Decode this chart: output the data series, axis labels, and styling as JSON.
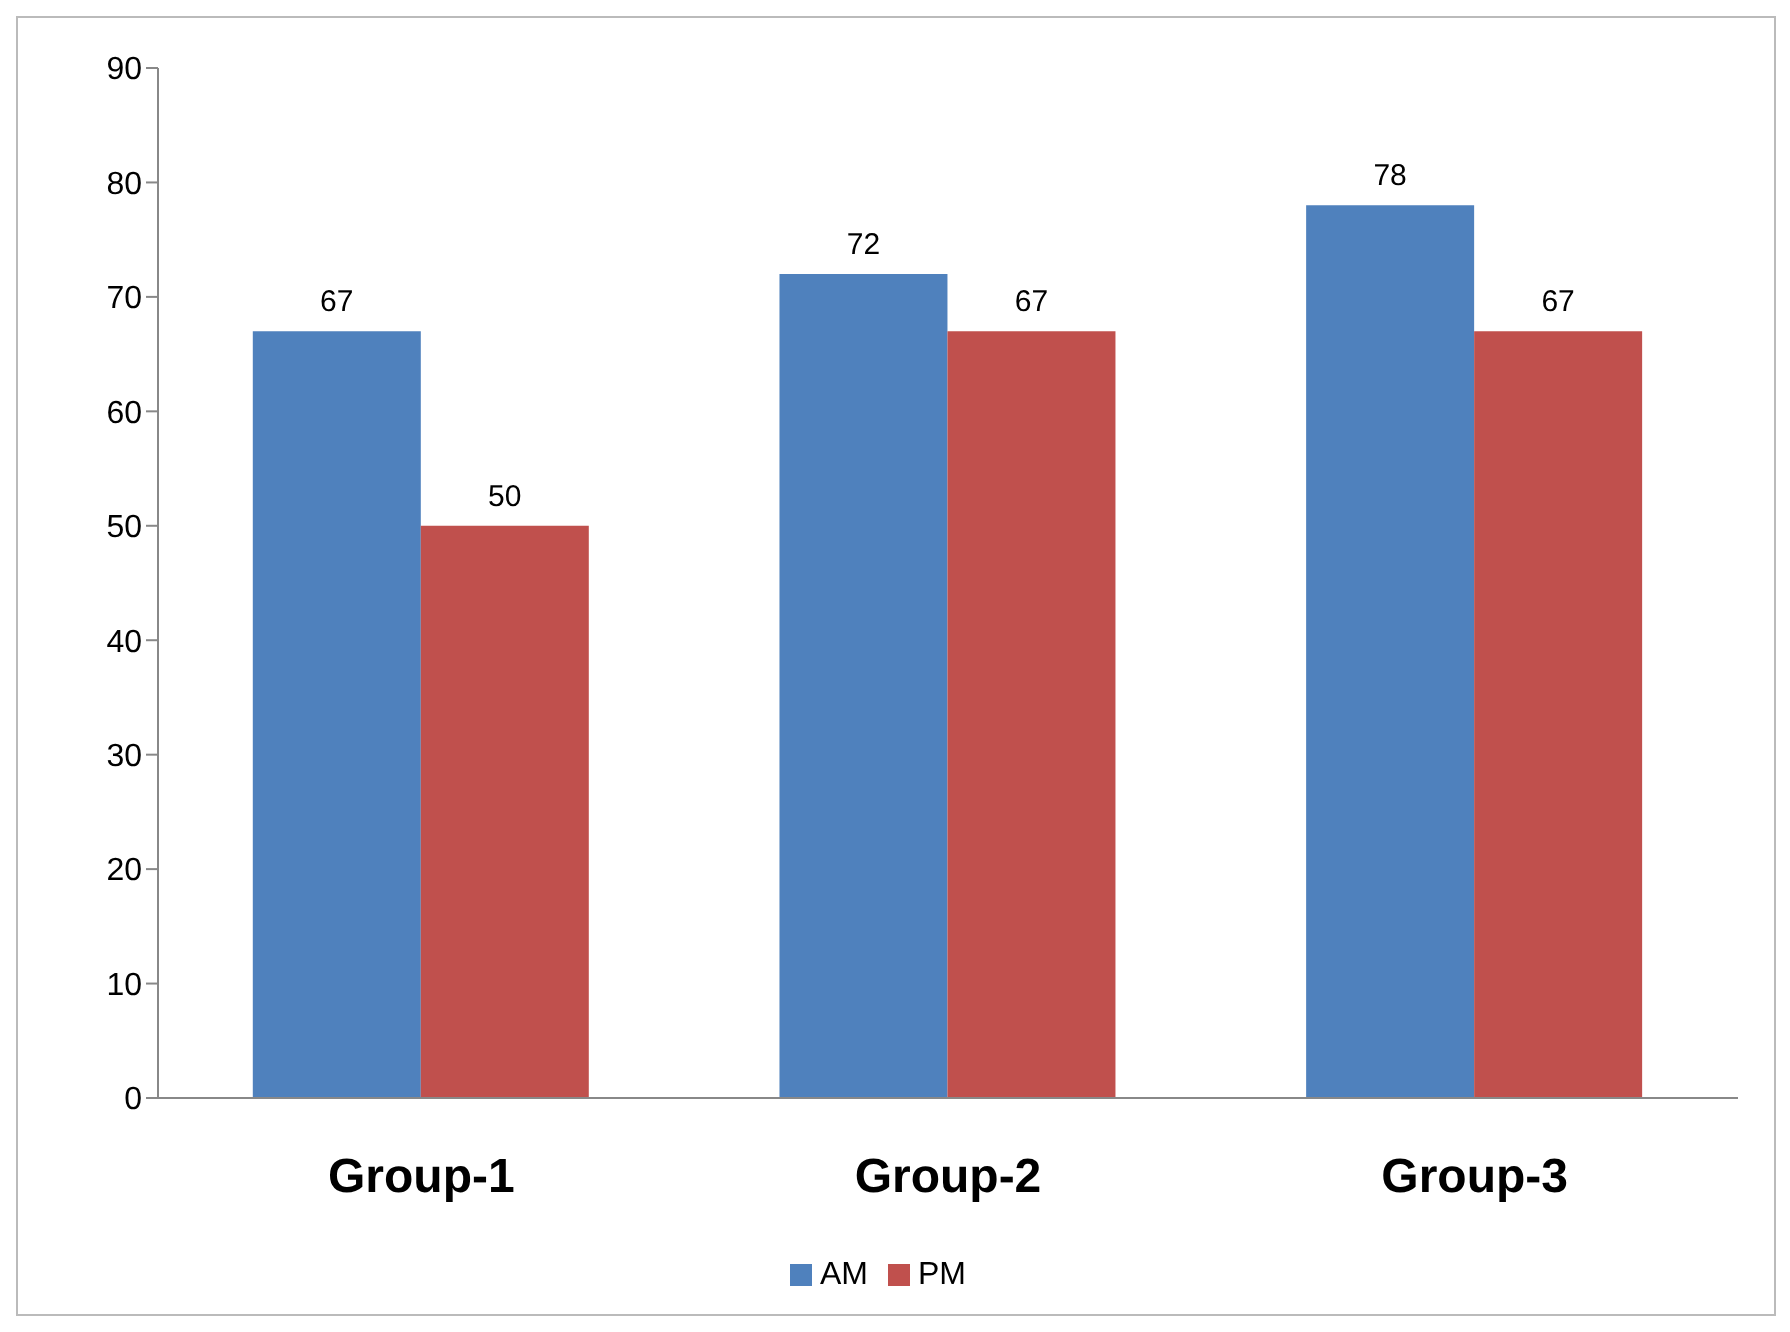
{
  "chart_data": {
    "type": "bar",
    "categories": [
      "Group-1",
      "Group-2",
      "Group-3"
    ],
    "series": [
      {
        "name": "AM",
        "color": "#4f81bd",
        "values": [
          67,
          72,
          78
        ]
      },
      {
        "name": "PM",
        "color": "#c0504d",
        "values": [
          50,
          67,
          67
        ]
      }
    ],
    "ylim": [
      0,
      90
    ],
    "yticks": [
      0,
      10,
      20,
      30,
      40,
      50,
      60,
      70,
      80,
      90
    ],
    "grid": false,
    "legend": "bottom",
    "data_labels": true
  }
}
